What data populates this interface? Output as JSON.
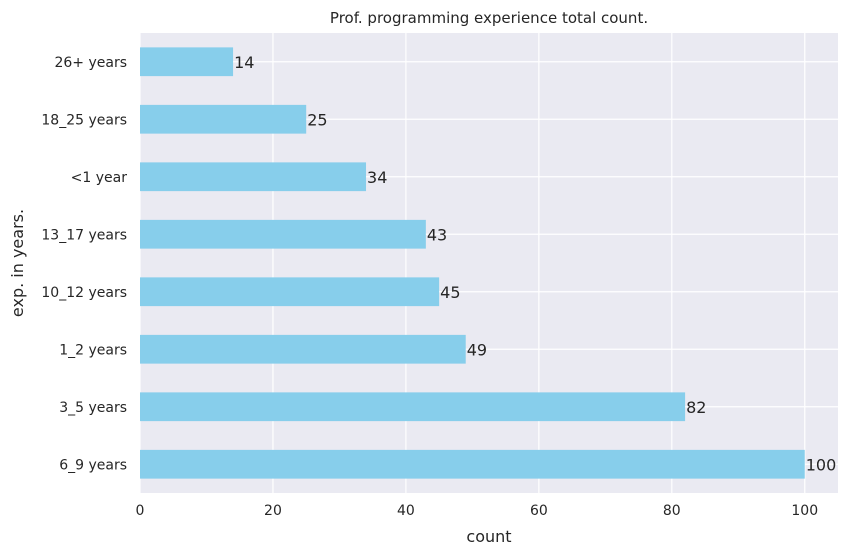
{
  "chart_data": {
    "type": "bar",
    "orientation": "horizontal",
    "title": "Prof. programming experience total count.",
    "xlabel": "count",
    "ylabel": "exp. in years.",
    "categories": [
      "6_9 years",
      "3_5 years",
      "1_2 years",
      "10_12 years",
      "13_17 years",
      "<1 year",
      "18_25 years",
      "26+ years"
    ],
    "values": [
      100,
      82,
      49,
      45,
      43,
      34,
      25,
      14
    ],
    "xlim": [
      0,
      105
    ],
    "xticks": [
      0,
      20,
      40,
      60,
      80,
      100
    ],
    "grid": true,
    "bar_color": "#87ceeb",
    "background_color": "#eaeaf2",
    "grid_color": "#ffffff",
    "show_data_labels": true
  }
}
